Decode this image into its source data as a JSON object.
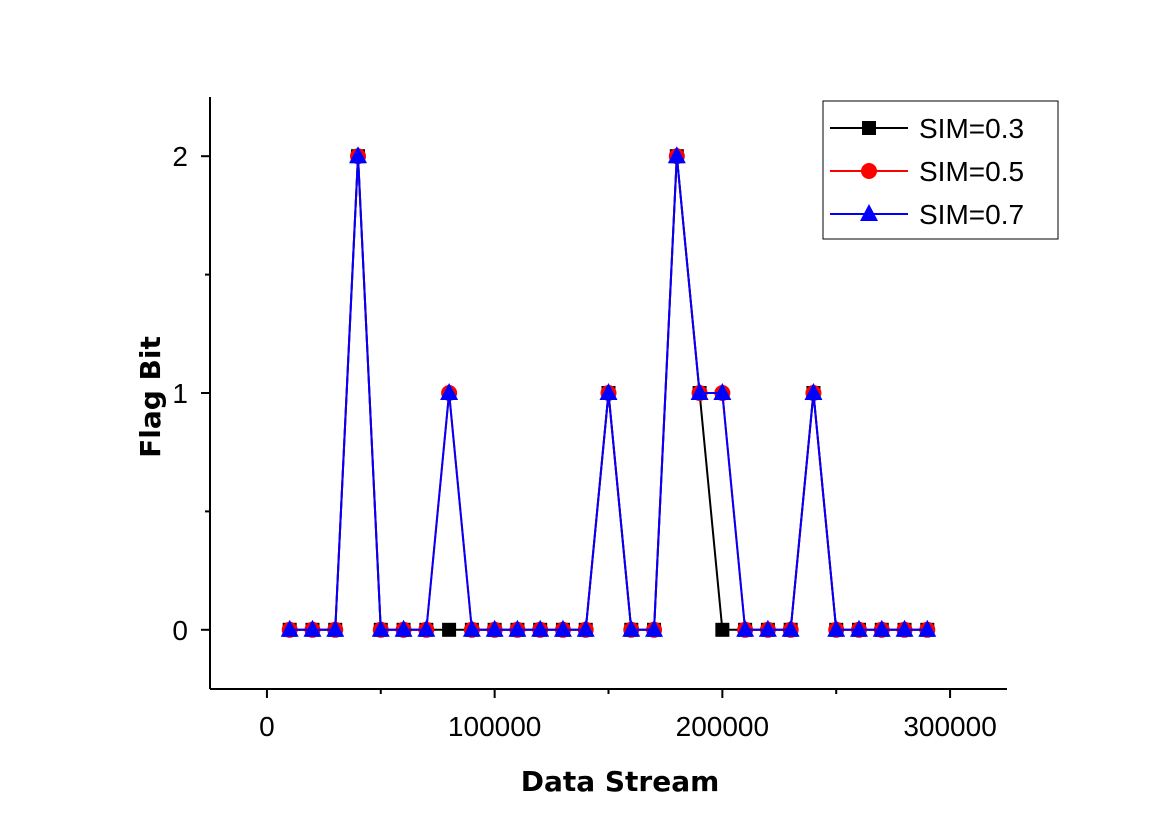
{
  "chart_data": {
    "type": "line",
    "title": "",
    "xlabel": "Data Stream",
    "ylabel": "Flag Bit",
    "xlim": [
      -25000,
      325000
    ],
    "ylim": [
      -0.25,
      2.25
    ],
    "x_ticks": [
      0,
      100000,
      200000,
      300000
    ],
    "x_tick_labels": [
      "0",
      "100000",
      "200000",
      "300000"
    ],
    "y_ticks": [
      0,
      1,
      2
    ],
    "y_tick_labels": [
      "0",
      "1",
      "2"
    ],
    "y_minor_ticks": [
      0.5,
      1.5
    ],
    "x_minor_ticks": [
      50000,
      150000,
      250000
    ],
    "grid": false,
    "legend_position": "top-right",
    "x": [
      10000,
      20000,
      30000,
      40000,
      50000,
      60000,
      70000,
      80000,
      90000,
      100000,
      110000,
      120000,
      130000,
      140000,
      150000,
      160000,
      170000,
      180000,
      190000,
      200000,
      210000,
      220000,
      230000,
      240000,
      250000,
      260000,
      270000,
      280000,
      290000
    ],
    "series": [
      {
        "name": "SIM=0.3",
        "color": "#000000",
        "marker": "square",
        "values": [
          0,
          0,
          0,
          2,
          0,
          0,
          0,
          0,
          0,
          0,
          0,
          0,
          0,
          0,
          1,
          0,
          0,
          2,
          1,
          0,
          0,
          0,
          0,
          1,
          0,
          0,
          0,
          0,
          0
        ]
      },
      {
        "name": "SIM=0.5",
        "color": "#ff0000",
        "marker": "circle",
        "values": [
          0,
          0,
          0,
          2,
          0,
          0,
          0,
          1,
          0,
          0,
          0,
          0,
          0,
          0,
          1,
          0,
          0,
          2,
          1,
          1,
          0,
          0,
          0,
          1,
          0,
          0,
          0,
          0,
          0
        ]
      },
      {
        "name": "SIM=0.7",
        "color": "#0000ff",
        "marker": "triangle",
        "values": [
          0,
          0,
          0,
          2,
          0,
          0,
          0,
          1,
          0,
          0,
          0,
          0,
          0,
          0,
          1,
          0,
          0,
          2,
          1,
          1,
          0,
          0,
          0,
          1,
          0,
          0,
          0,
          0,
          0
        ]
      }
    ]
  }
}
